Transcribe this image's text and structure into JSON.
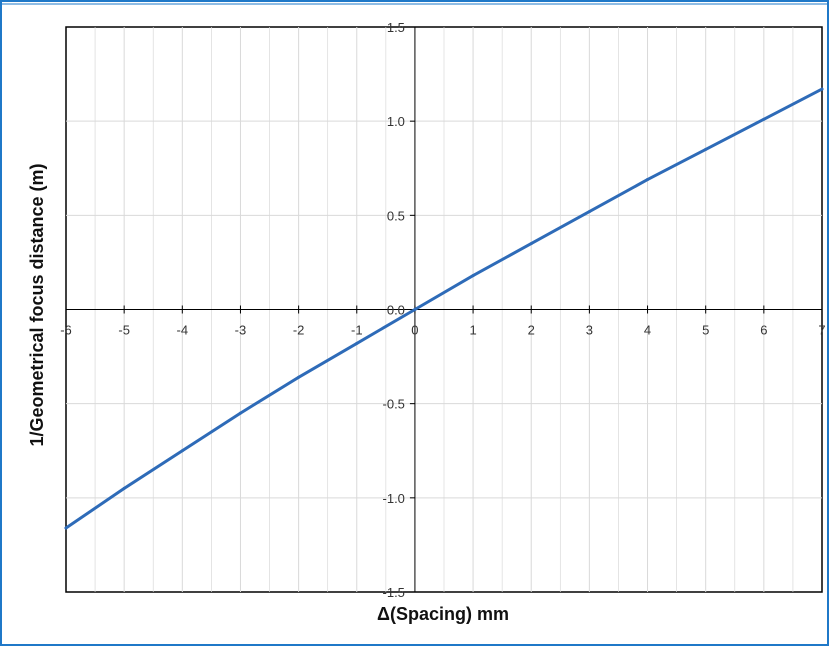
{
  "chart_data": {
    "type": "line",
    "title": "",
    "xlabel": "Δ(Spacing) mm",
    "ylabel": "1/Geometrical focus distance (m)",
    "xlim": [
      -6,
      7
    ],
    "ylim": [
      -1.5,
      1.5
    ],
    "x_ticks": [
      -6,
      -5,
      -4,
      -3,
      -2,
      -1,
      0,
      1,
      2,
      3,
      4,
      5,
      6,
      7
    ],
    "x_tick_labels": [
      "-6",
      "-5",
      "-4",
      "-3",
      "-2",
      "-1",
      "0",
      "1",
      "2",
      "3",
      "4",
      "5",
      "6",
      "7"
    ],
    "y_ticks": [
      -1.5,
      -1.0,
      -0.5,
      0.0,
      0.5,
      1.0,
      1.5
    ],
    "y_tick_labels": [
      "-1.5",
      "-1.0",
      "-0.5",
      "0.0",
      "0.5",
      "1.0",
      "1.5"
    ],
    "x_minor_step": 0.5,
    "grid": true,
    "legend": "none",
    "series": [
      {
        "color": "#2e6bb8",
        "x": [
          -6,
          -5,
          -4,
          -3,
          -2,
          -1,
          0,
          1,
          2,
          3,
          4,
          5,
          6,
          7
        ],
        "y": [
          -1.16,
          -0.95,
          -0.75,
          -0.55,
          -0.36,
          -0.18,
          0.0,
          0.18,
          0.35,
          0.52,
          0.69,
          0.85,
          1.01,
          1.17
        ]
      }
    ],
    "colors": {
      "frame_border": "#1f78c8",
      "axis": "#000000",
      "grid": "#d9d9d9",
      "line": "#2e6bb8"
    }
  }
}
